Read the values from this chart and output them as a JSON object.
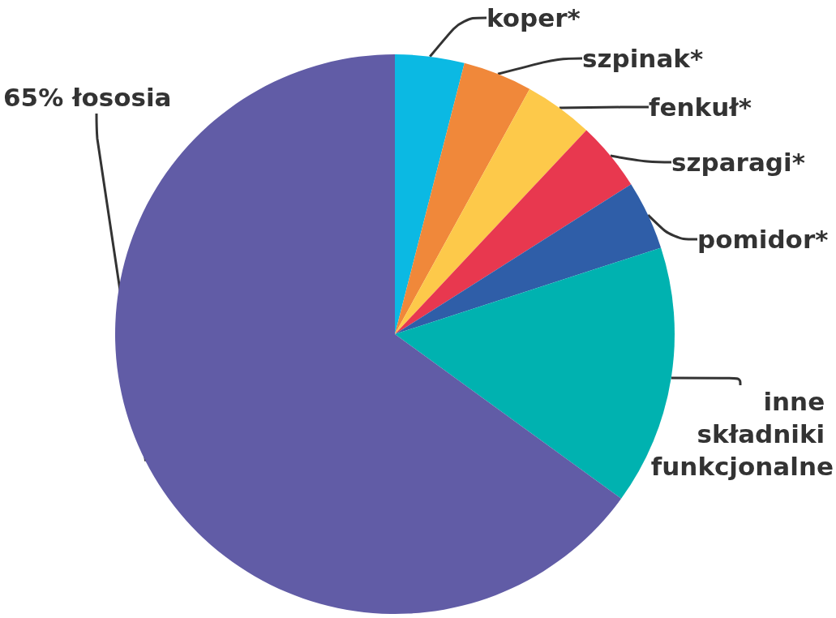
{
  "chart_data": {
    "type": "pie",
    "categories": [
      "koper*",
      "szpinak*",
      "fenkuł*",
      "szparagi*",
      "pomidor*",
      "inne składniki funkcjonalne",
      "łososia"
    ],
    "values": [
      4,
      4,
      4,
      4,
      4,
      15,
      65
    ],
    "value_labels": [
      null,
      null,
      null,
      null,
      null,
      null,
      "65%"
    ],
    "colors": [
      "#0bb9e3",
      "#f0883a",
      "#fdc94a",
      "#e8384f",
      "#2f5ea8",
      "#00b2b0",
      "#615ca6"
    ]
  }
}
